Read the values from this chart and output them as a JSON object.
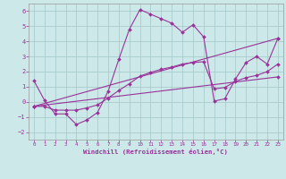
{
  "xlabel": "Windchill (Refroidissement éolien,°C)",
  "bg_color": "#cce8e8",
  "grid_color": "#aacccc",
  "line_color": "#993399",
  "xlim": [
    -0.5,
    23.5
  ],
  "ylim": [
    -2.5,
    6.5
  ],
  "yticks": [
    -2,
    -1,
    0,
    1,
    2,
    3,
    4,
    5,
    6
  ],
  "xticks": [
    0,
    1,
    2,
    3,
    4,
    5,
    6,
    7,
    8,
    9,
    10,
    11,
    12,
    13,
    14,
    15,
    16,
    17,
    18,
    19,
    20,
    21,
    22,
    23
  ],
  "series": [
    {
      "x": [
        0,
        1,
        2,
        3,
        4,
        5,
        6,
        7,
        8,
        9,
        10,
        11,
        12,
        13,
        14,
        15,
        16,
        17,
        18,
        19,
        20,
        21,
        22,
        23
      ],
      "y": [
        1.4,
        0.1,
        -0.8,
        -0.8,
        -1.5,
        -1.2,
        -0.7,
        0.7,
        2.8,
        4.8,
        6.1,
        5.8,
        5.5,
        5.2,
        4.6,
        5.1,
        4.3,
        0.05,
        0.2,
        1.5,
        2.6,
        3.0,
        2.5,
        4.2
      ]
    },
    {
      "x": [
        0,
        1,
        2,
        3,
        4,
        5,
        6,
        7,
        8,
        9,
        10,
        11,
        12,
        13,
        14,
        15,
        16,
        17,
        18,
        19,
        20,
        21,
        22,
        23
      ],
      "y": [
        -0.3,
        -0.3,
        -0.55,
        -0.55,
        -0.55,
        -0.4,
        -0.2,
        0.25,
        0.75,
        1.2,
        1.7,
        1.95,
        2.15,
        2.3,
        2.5,
        2.6,
        2.65,
        0.85,
        0.95,
        1.35,
        1.6,
        1.75,
        2.0,
        2.5
      ]
    },
    {
      "x": [
        0,
        23
      ],
      "y": [
        -0.3,
        1.65
      ]
    },
    {
      "x": [
        0,
        23
      ],
      "y": [
        -0.3,
        4.2
      ]
    }
  ]
}
